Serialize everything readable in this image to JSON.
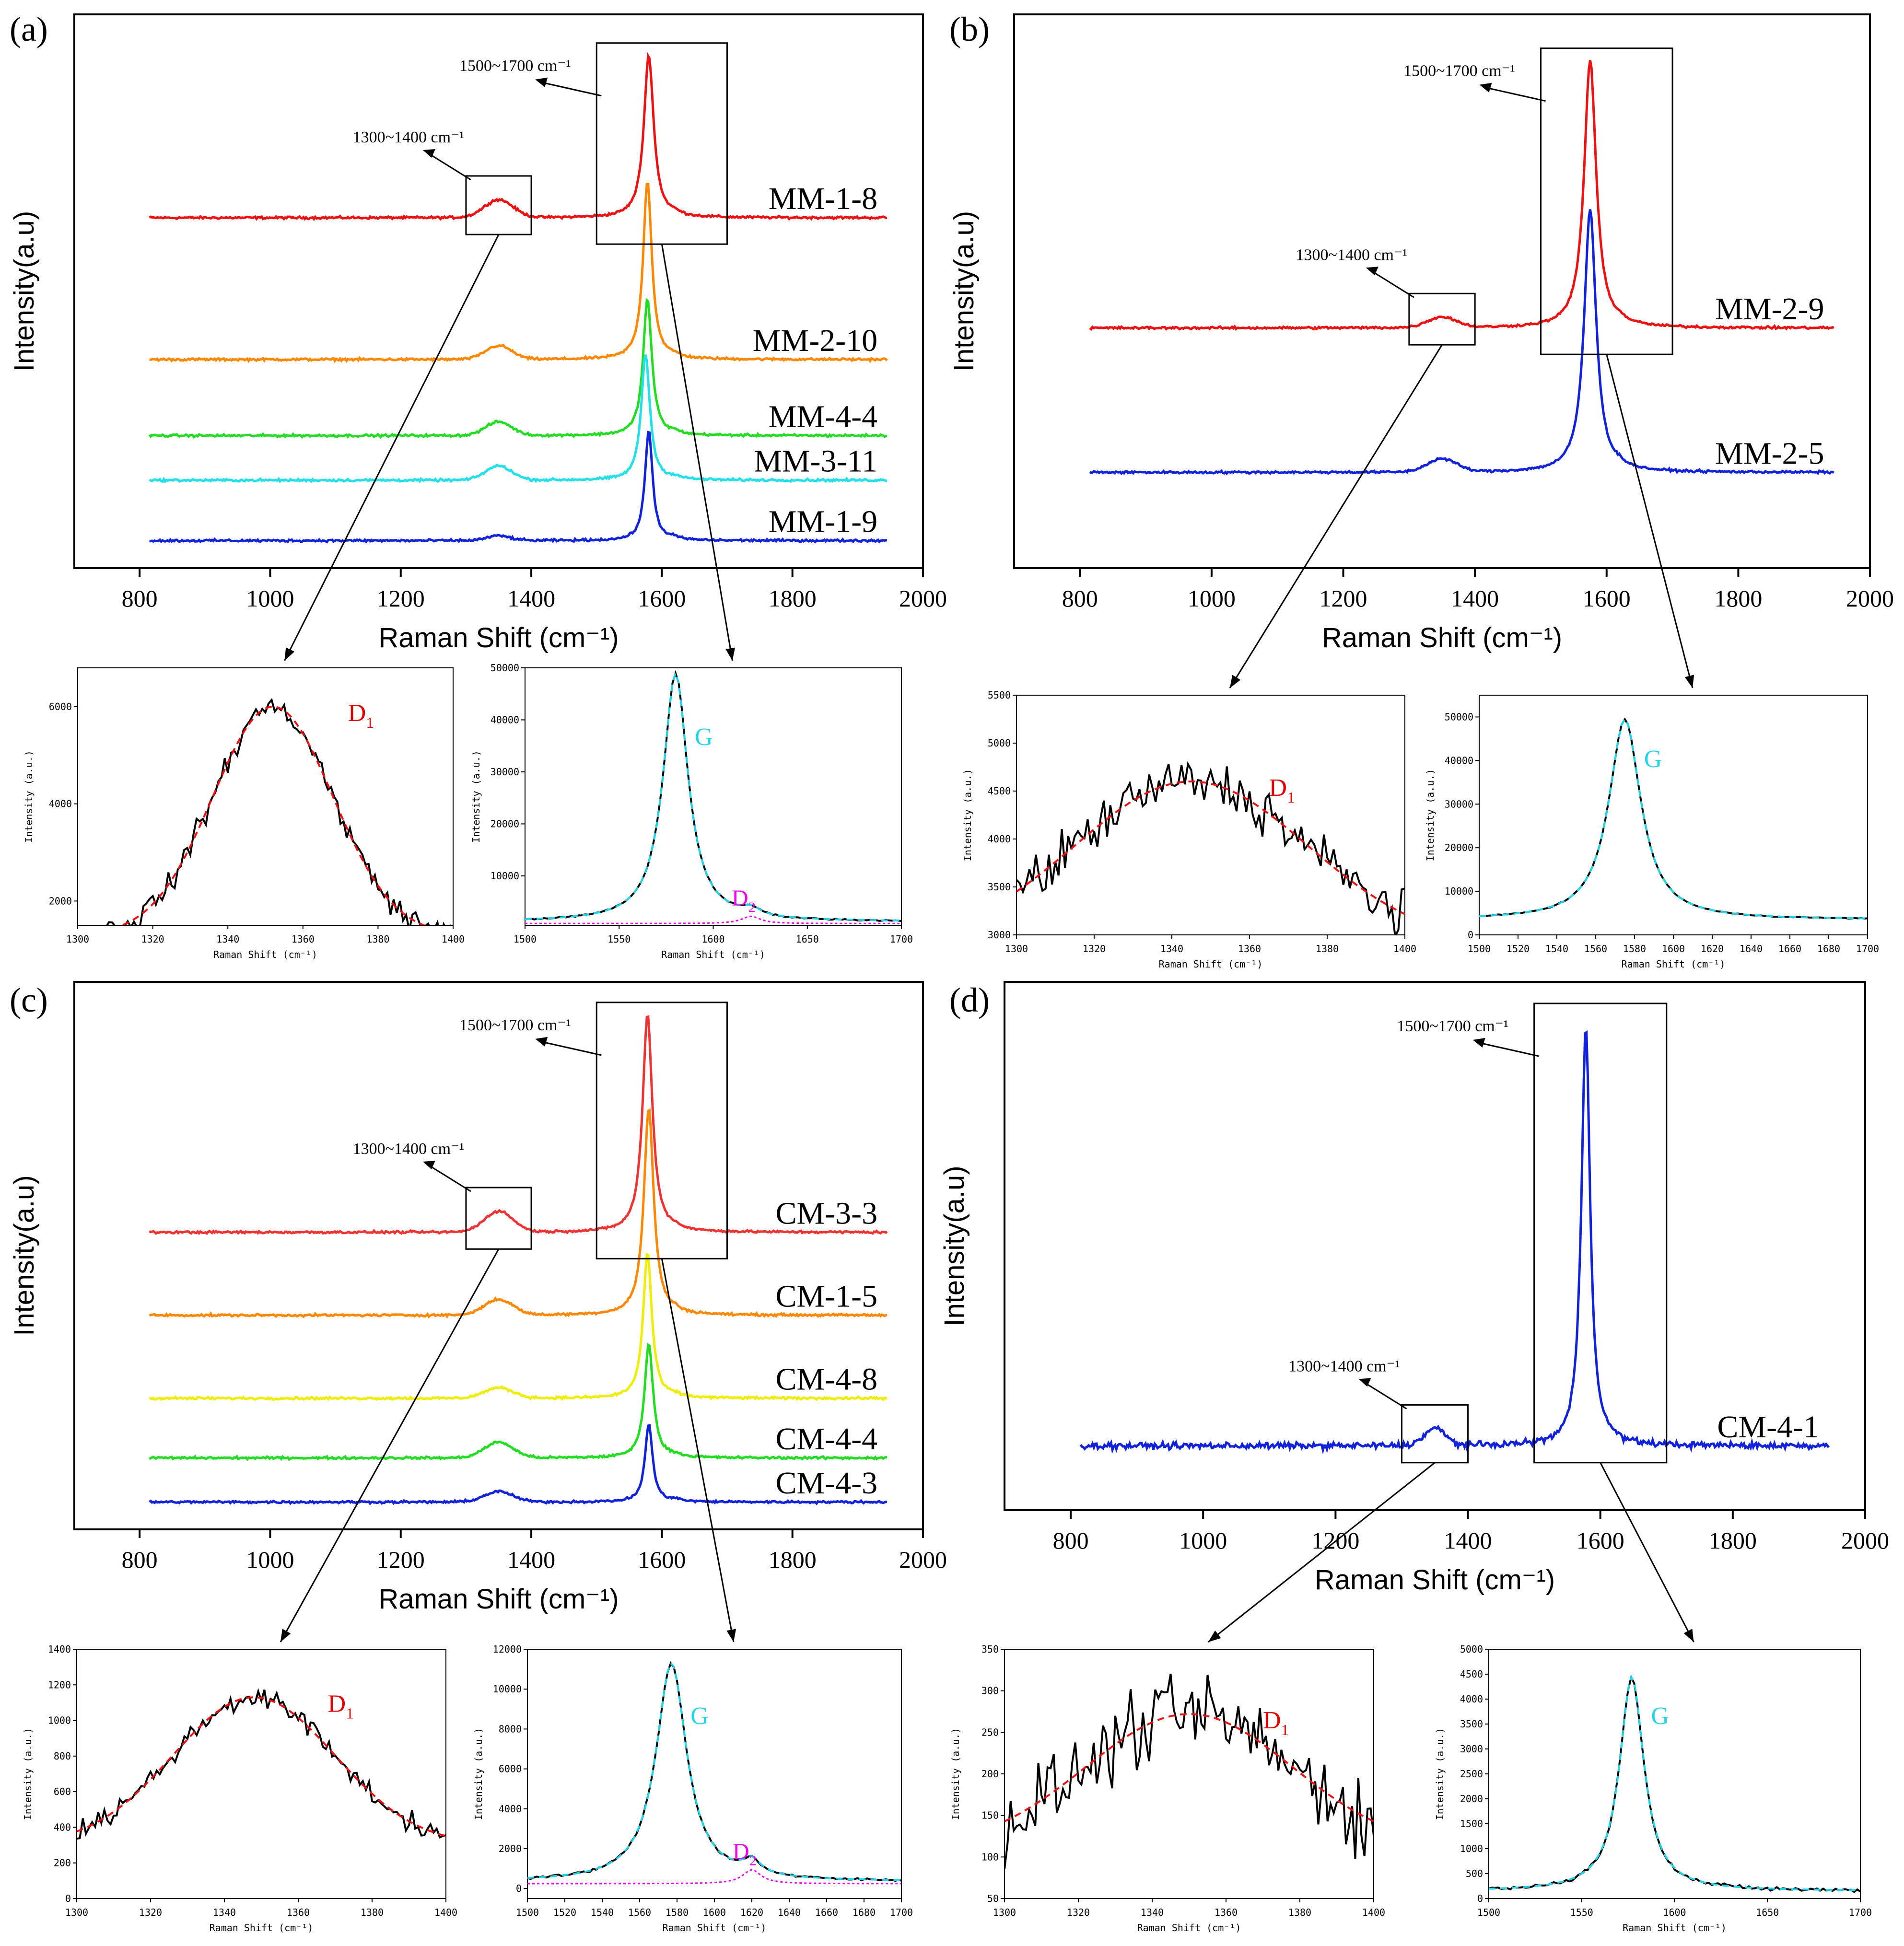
{
  "chart_data": [
    {
      "panel_id": "a",
      "panel_label": "(a)",
      "type": "line",
      "xlabel": "Raman Shift (cm⁻¹)",
      "ylabel": "Intensity(a.u)",
      "xlim": [
        700,
        2000
      ],
      "xticks": [
        "800",
        "1000",
        "1200",
        "1400",
        "1600",
        "1800",
        "2000"
      ],
      "series": [
        {
          "name": "MM-1-8",
          "color": "#ee1111",
          "baseline": 0.64,
          "g_height": 0.31,
          "d_height": 0.034,
          "g_center": 1580,
          "g_width": 9,
          "d_width": 22
        },
        {
          "name": "MM-2-10",
          "color": "#ff8800",
          "baseline": 0.37,
          "g_height": 0.34,
          "d_height": 0.026,
          "g_center": 1578,
          "g_width": 8,
          "d_width": 20
        },
        {
          "name": "MM-4-4",
          "color": "#22dd22",
          "baseline": 0.225,
          "g_height": 0.26,
          "d_height": 0.026,
          "g_center": 1578,
          "g_width": 8,
          "d_width": 20
        },
        {
          "name": "MM-3-11",
          "color": "#22e0e8",
          "baseline": 0.14,
          "g_height": 0.24,
          "d_height": 0.027,
          "g_center": 1575,
          "g_width": 8,
          "d_width": 20
        },
        {
          "name": "MM-1-9",
          "color": "#1122dd",
          "baseline": 0.025,
          "g_height": 0.21,
          "d_height": 0.009,
          "g_center": 1580,
          "g_width": 7,
          "d_width": 18
        }
      ],
      "annotations": [
        "1300~1400 cm⁻¹",
        "1500~1700 cm⁻¹"
      ],
      "zoom_boxes": [
        [
          1300,
          1400
        ],
        [
          1500,
          1700
        ]
      ],
      "insets": [
        {
          "type": "line",
          "xlim": [
            1300,
            1400
          ],
          "ylim": [
            1500,
            6800
          ],
          "xticks": [
            "1300",
            "1320",
            "1340",
            "1360",
            "1380",
            "1400"
          ],
          "yticks": [
            "2000",
            "4000",
            "6000"
          ],
          "xlabel": "Raman Shift (cm⁻¹)",
          "ylabel": "Intensity (a.u.)",
          "peak_label": "D",
          "peak_sub": "1",
          "peak_color": "#e00000",
          "fit_center": 1352,
          "fit_height": 6000,
          "fit_sigma": 16,
          "fit_base": 1300,
          "noise": 150
        },
        {
          "type": "line",
          "xlim": [
            1500,
            1700
          ],
          "ylim": [
            500,
            50000
          ],
          "xticks": [
            "1500",
            "1550",
            "1600",
            "1650",
            "1700"
          ],
          "yticks": [
            "10000",
            "20000",
            "30000",
            "40000",
            "50000"
          ],
          "xlabel": "Raman Shift (cm⁻¹)",
          "ylabel": "Intensity (a.u.)",
          "peak_label": "G",
          "peak_sub": "",
          "peak_color": "#22d4e8",
          "fit_center": 1580,
          "fit_height": 49000,
          "fit_hwhm": 8,
          "fit_base": 1200,
          "d2_label": "D",
          "d2_sub": "2",
          "d2_color": "#ee00ee",
          "d2_center": 1620,
          "d2_height": 1400,
          "noise": 120
        }
      ]
    },
    {
      "panel_id": "b",
      "panel_label": "(b)",
      "type": "line",
      "xlabel": "Raman Shift (cm⁻¹)",
      "ylabel": "Intensity(a.u)",
      "xlim": [
        700,
        2000
      ],
      "xticks": [
        "800",
        "1000",
        "1200",
        "1400",
        "1600",
        "1800",
        "2000"
      ],
      "series": [
        {
          "name": "MM-2-9",
          "color": "#ee1111",
          "baseline": 0.43,
          "g_height": 0.51,
          "d_height": 0.02,
          "g_center": 1575,
          "g_width": 11,
          "d_width": 22
        },
        {
          "name": "MM-2-5",
          "color": "#1122dd",
          "baseline": 0.155,
          "g_height": 0.5,
          "d_height": 0.025,
          "g_center": 1575,
          "g_width": 11,
          "d_width": 22
        }
      ],
      "annotations": [
        "1300~1400 cm⁻¹",
        "1500~1700 cm⁻¹"
      ],
      "zoom_boxes": [
        [
          1300,
          1400
        ],
        [
          1500,
          1700
        ]
      ],
      "insets": [
        {
          "type": "line",
          "xlim": [
            1300,
            1400
          ],
          "ylim": [
            3000,
            5500
          ],
          "xticks": [
            "1300",
            "1320",
            "1340",
            "1360",
            "1380",
            "1400"
          ],
          "yticks": [
            "3000",
            "3500",
            "4000",
            "4500",
            "5000",
            "5500"
          ],
          "xlabel": "Raman Shift (cm⁻¹)",
          "ylabel": "Intensity (a.u.)",
          "peak_label": "D",
          "peak_sub": "1",
          "peak_color": "#e00000",
          "fit_center": 1345,
          "fit_height": 4600,
          "fit_sigma": 30,
          "fit_base": 2900,
          "noise": 160
        },
        {
          "type": "line",
          "xlim": [
            1500,
            1700
          ],
          "ylim": [
            0,
            55000
          ],
          "xticks": [
            "1500",
            "1520",
            "1540",
            "1560",
            "1580",
            "1600",
            "1620",
            "1640",
            "1660",
            "1680",
            "1700"
          ],
          "yticks": [
            "0",
            "10000",
            "20000",
            "30000",
            "40000",
            "50000"
          ],
          "xlabel": "Raman Shift (cm⁻¹)",
          "ylabel": "Intensity (a.u.)",
          "peak_label": "G",
          "peak_sub": "",
          "peak_color": "#22d4e8",
          "fit_center": 1575,
          "fit_height": 49500,
          "fit_hwhm": 10,
          "fit_base": 3500,
          "noise": 100
        }
      ]
    },
    {
      "panel_id": "c",
      "panel_label": "(c)",
      "type": "line",
      "xlabel": "Raman Shift (cm⁻¹)",
      "ylabel": "Intensity(a.u)",
      "xlim": [
        700,
        2000
      ],
      "xticks": [
        "800",
        "1000",
        "1200",
        "1400",
        "1600",
        "1800",
        "2000"
      ],
      "series": [
        {
          "name": "CM-3-3",
          "color": "#ee3333",
          "baseline": 0.545,
          "g_height": 0.42,
          "d_height": 0.04,
          "g_center": 1578,
          "g_width": 9,
          "d_width": 22
        },
        {
          "name": "CM-1-5",
          "color": "#ff8800",
          "baseline": 0.385,
          "g_height": 0.4,
          "d_height": 0.03,
          "g_center": 1580,
          "g_width": 9,
          "d_width": 22
        },
        {
          "name": "CM-4-8",
          "color": "#eeee00",
          "baseline": 0.225,
          "g_height": 0.28,
          "d_height": 0.02,
          "g_center": 1578,
          "g_width": 8,
          "d_width": 22
        },
        {
          "name": "CM-4-4",
          "color": "#22dd22",
          "baseline": 0.11,
          "g_height": 0.22,
          "d_height": 0.03,
          "g_center": 1580,
          "g_width": 8,
          "d_width": 22
        },
        {
          "name": "CM-4-3",
          "color": "#1122dd",
          "baseline": 0.025,
          "g_height": 0.15,
          "d_height": 0.02,
          "g_center": 1580,
          "g_width": 7,
          "d_width": 22
        }
      ],
      "annotations": [
        "1300~1400 cm⁻¹",
        "1500~1700 cm⁻¹"
      ],
      "zoom_boxes": [
        [
          1300,
          1400
        ],
        [
          1500,
          1700
        ]
      ],
      "insets": [
        {
          "type": "line",
          "xlim": [
            1300,
            1400
          ],
          "ylim": [
            0,
            1400
          ],
          "xticks": [
            "1300",
            "1320",
            "1340",
            "1360",
            "1380",
            "1400"
          ],
          "yticks": [
            "0",
            "200",
            "400",
            "600",
            "800",
            "1000",
            "1200",
            "1400"
          ],
          "xlabel": "Raman Shift (cm⁻¹)",
          "ylabel": "Intensity (a.u.)",
          "peak_label": "D",
          "peak_sub": "1",
          "peak_color": "#e00000",
          "fit_center": 1348,
          "fit_height": 1130,
          "fit_sigma": 22,
          "fit_base": 300,
          "noise": 35
        },
        {
          "type": "line",
          "xlim": [
            1500,
            1700
          ],
          "ylim": [
            -500,
            12000
          ],
          "xticks": [
            "1500",
            "1520",
            "1540",
            "1560",
            "1580",
            "1600",
            "1620",
            "1640",
            "1660",
            "1680",
            "1700"
          ],
          "yticks": [
            "0",
            "2000",
            "4000",
            "6000",
            "8000",
            "10000",
            "12000"
          ],
          "xlabel": "Raman Shift (cm⁻¹)",
          "ylabel": "Intensity (a.u.)",
          "peak_label": "G",
          "peak_sub": "",
          "peak_color": "#22d4e8",
          "fit_center": 1577,
          "fit_height": 11300,
          "fit_hwhm": 10,
          "fit_base": 350,
          "d2_label": "D",
          "d2_sub": "2",
          "d2_color": "#ee00ee",
          "d2_center": 1620,
          "d2_height": 700,
          "noise": 60
        }
      ]
    },
    {
      "panel_id": "d",
      "panel_label": "(d)",
      "type": "line",
      "xlabel": "Raman Shift (cm⁻¹)",
      "ylabel": "Intensity(a.u)",
      "xlim": [
        700,
        2000
      ],
      "xticks": [
        "800",
        "1000",
        "1200",
        "1400",
        "1600",
        "1800",
        "2000"
      ],
      "series": [
        {
          "name": "CM-4-1",
          "color": "#1122dd",
          "baseline": 0.1,
          "g_height": 0.84,
          "d_height": 0.034,
          "g_center": 1578,
          "g_width": 8,
          "d_width": 16
        }
      ],
      "annotations": [
        "1300~1400 cm⁻¹",
        "1500~1700 cm⁻¹"
      ],
      "zoom_boxes": [
        [
          1300,
          1400
        ],
        [
          1500,
          1700
        ]
      ],
      "insets": [
        {
          "type": "line",
          "xlim": [
            1300,
            1400
          ],
          "ylim": [
            50,
            350
          ],
          "xticks": [
            "1300",
            "1320",
            "1340",
            "1360",
            "1380",
            "1400"
          ],
          "yticks": [
            "50",
            "100",
            "150",
            "200",
            "250",
            "300",
            "350"
          ],
          "xlabel": "Raman Shift (cm⁻¹)",
          "ylabel": "Intensity (a.u.)",
          "peak_label": "D",
          "peak_sub": "1",
          "peak_color": "#e00000",
          "fit_center": 1350,
          "fit_height": 272,
          "fit_sigma": 28,
          "fit_base": 110,
          "noise": 28
        },
        {
          "type": "line",
          "xlim": [
            1500,
            1700
          ],
          "ylim": [
            0,
            5000
          ],
          "xticks": [
            "1500",
            "1550",
            "1600",
            "1650",
            "1700"
          ],
          "yticks": [
            "0",
            "500",
            "1000",
            "1500",
            "2000",
            "2500",
            "3000",
            "3500",
            "4000",
            "4500",
            "5000"
          ],
          "xlabel": "Raman Shift (cm⁻¹)",
          "ylabel": "Intensity (a.u.)",
          "peak_label": "G",
          "peak_sub": "",
          "peak_color": "#22d4e8",
          "fit_center": 1577,
          "fit_height": 4450,
          "fit_hwhm": 8,
          "fit_base": 150,
          "noise": 40
        }
      ]
    }
  ]
}
